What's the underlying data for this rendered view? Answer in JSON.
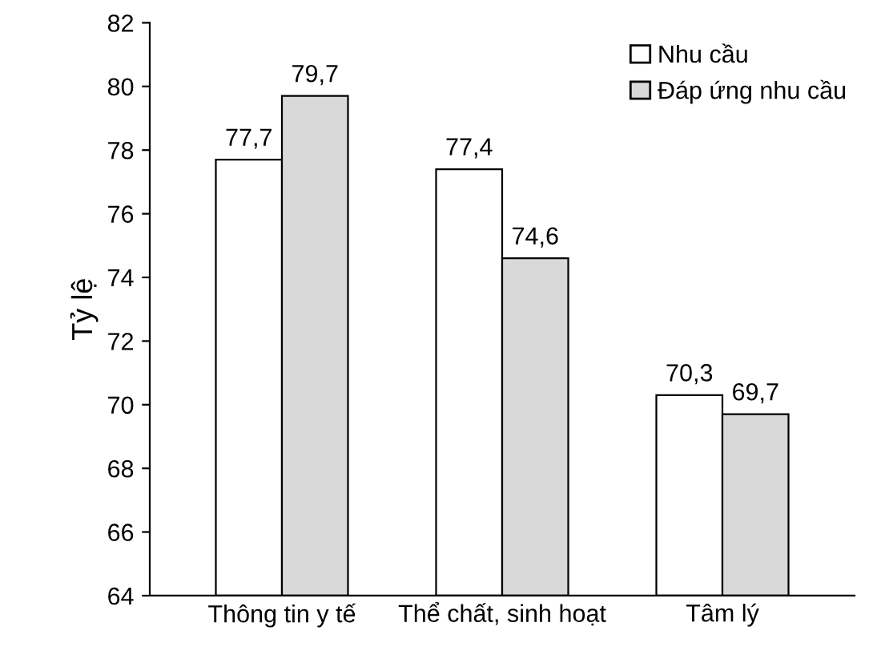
{
  "chart_data": {
    "type": "bar",
    "ylabel": "Tỷ lệ",
    "categories": [
      "Thông tin y tế",
      "Thể chất, sinh hoạt",
      "Tâm lý"
    ],
    "series": [
      {
        "name": "Nhu cầu",
        "color": "#ffffff",
        "values": [
          77.7,
          77.4,
          70.3
        ],
        "value_labels": [
          "77,7",
          "77,4",
          "70,3"
        ]
      },
      {
        "name": "Đáp ứng nhu cầu",
        "color": "#d9d9d9",
        "values": [
          79.7,
          74.6,
          69.7
        ],
        "value_labels": [
          "79,7",
          "74,6",
          "69,7"
        ]
      }
    ],
    "ylim": [
      64,
      82
    ],
    "yticks": [
      64,
      66,
      68,
      70,
      72,
      74,
      76,
      78,
      80,
      82
    ],
    "grid": false,
    "legend": "top right"
  }
}
